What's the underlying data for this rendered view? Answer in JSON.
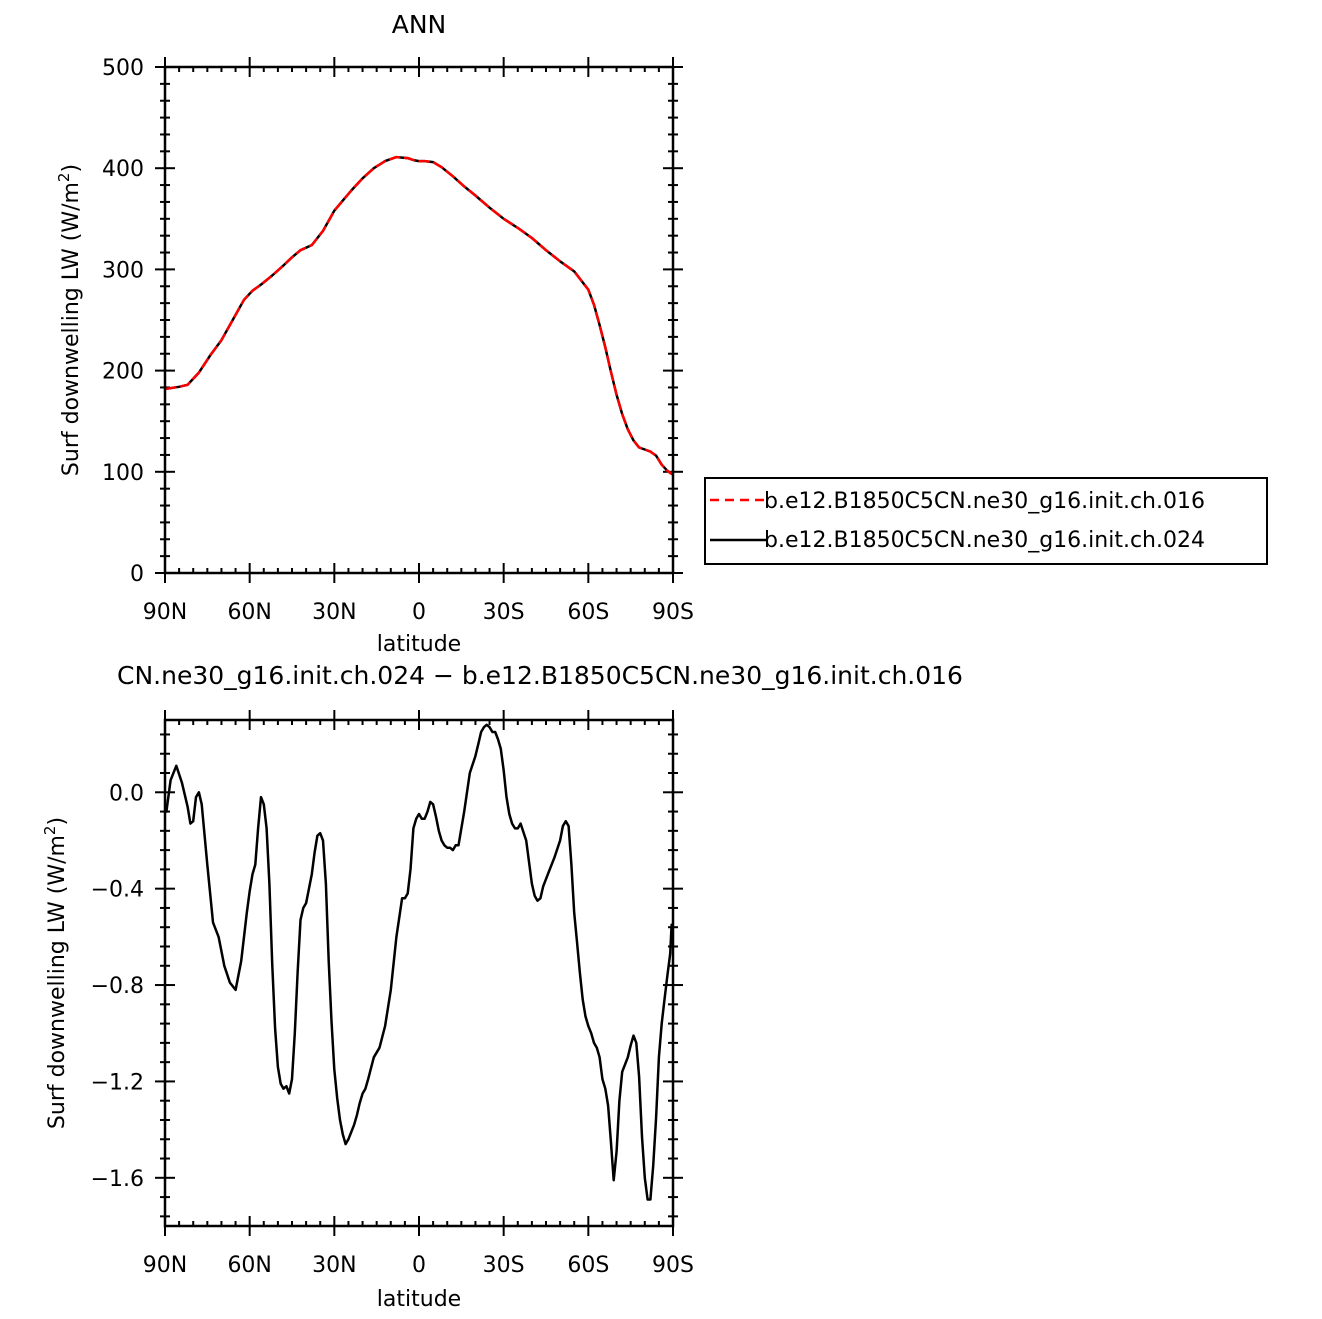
{
  "chart_data": [
    {
      "type": "line",
      "title": "ANN",
      "xlabel": "latitude",
      "ylabel": "Surf downwelling LW (W/m²)",
      "ylabel_text": "Surf downwelling LW (W/m",
      "ylabel_sup": "2",
      "ylabel_close": ")",
      "xlim": [
        -90,
        90
      ],
      "ylim": [
        0,
        500
      ],
      "xticks": [
        -90,
        -60,
        -30,
        0,
        30,
        60,
        90
      ],
      "xtick_labels": [
        "90N",
        "60N",
        "30N",
        "0",
        "30S",
        "60S",
        "90S"
      ],
      "yticks": [
        0,
        100,
        200,
        300,
        400,
        500
      ],
      "ytick_labels": [
        "0",
        "100",
        "200",
        "300",
        "400",
        "500"
      ],
      "legend_position": "right",
      "x": [
        -89.5,
        -85,
        -82,
        -78,
        -74,
        -70,
        -66,
        -62,
        -59,
        -56,
        -52,
        -48,
        -45,
        -42,
        -38,
        -34,
        -30,
        -27,
        -24,
        -20,
        -16,
        -12,
        -8,
        -4,
        -2,
        0,
        2,
        5,
        8,
        12,
        16,
        20,
        25,
        30,
        35,
        40,
        45,
        50,
        55,
        60,
        62,
        64,
        66,
        68,
        70,
        72,
        74,
        76,
        78,
        80,
        82,
        84,
        86,
        88,
        89.5
      ],
      "series": [
        {
          "name": "b.e12.B1850C5CN.ne30_g16.init.ch.016",
          "color": "#ff0000",
          "dash": true,
          "values": [
            182,
            184,
            186,
            198,
            215,
            230,
            250,
            270,
            279,
            285,
            294,
            304,
            312,
            319,
            324,
            338,
            358,
            368,
            378,
            390,
            400,
            407,
            411,
            410,
            408,
            407,
            407,
            406,
            401,
            392,
            382,
            373,
            361,
            350,
            341,
            331,
            319,
            308,
            298,
            280,
            265,
            245,
            223,
            199,
            176,
            157,
            142,
            131,
            124,
            122,
            120,
            116,
            107,
            101,
            98
          ]
        },
        {
          "name": "b.e12.B1850C5CN.ne30_g16.init.ch.024",
          "color": "#000000",
          "dash": false,
          "values": [
            182,
            184,
            186,
            198,
            215,
            230,
            250,
            270,
            279,
            285,
            294,
            304,
            312,
            319,
            324,
            338,
            358,
            368,
            378,
            390,
            400,
            407,
            411,
            410,
            408,
            407,
            407,
            406,
            401,
            392,
            382,
            373,
            361,
            350,
            341,
            331,
            319,
            308,
            298,
            280,
            265,
            245,
            223,
            199,
            176,
            157,
            142,
            131,
            124,
            122,
            120,
            116,
            107,
            101,
            98
          ]
        }
      ]
    },
    {
      "type": "line",
      "title": "CN.ne30_g16.init.ch.024 − b.e12.B1850C5CN.ne30_g16.init.ch.016",
      "xlabel": "latitude",
      "ylabel": "Surf downwelling LW (W/m²)",
      "ylabel_text": "Surf downwelling LW (W/m",
      "ylabel_sup": "2",
      "ylabel_close": ")",
      "xlim": [
        -90,
        90
      ],
      "ylim": [
        -1.8,
        0.3
      ],
      "xticks": [
        -90,
        -60,
        -30,
        0,
        30,
        60,
        90
      ],
      "xtick_labels": [
        "90N",
        "60N",
        "30N",
        "0",
        "30S",
        "60S",
        "90S"
      ],
      "yticks": [
        -1.6,
        -1.2,
        -0.8,
        -0.4,
        0.0
      ],
      "ytick_labels": [
        "−1.6",
        "−1.2",
        "−0.8",
        "−0.4",
        "0.0"
      ],
      "x": [
        -89.5,
        -88,
        -86,
        -84,
        -82,
        -81,
        -80,
        -79,
        -78,
        -77,
        -75,
        -73,
        -71,
        -69,
        -67,
        -65,
        -63,
        -61,
        -60,
        -59,
        -58,
        -57,
        -56,
        -55,
        -54,
        -53,
        -52,
        -51,
        -50,
        -49,
        -48,
        -47,
        -46,
        -45,
        -44,
        -43,
        -42,
        -41,
        -40,
        -38,
        -37,
        -36,
        -35,
        -34,
        -33,
        -32,
        -31,
        -30,
        -29,
        -28,
        -27,
        -26,
        -25,
        -23,
        -22,
        -21,
        -20,
        -19,
        -18,
        -16,
        -14,
        -12,
        -10,
        -8,
        -6,
        -5,
        -4,
        -3,
        -2,
        -1,
        0,
        1,
        2,
        3,
        4,
        5,
        6,
        7,
        8,
        9,
        10,
        11,
        12,
        13,
        14,
        16,
        18,
        20,
        21,
        22,
        23,
        24,
        25,
        26,
        27,
        28,
        29,
        30,
        31,
        32,
        33,
        34,
        35,
        36,
        38,
        40,
        41,
        42,
        43,
        44,
        46,
        48,
        50,
        51,
        52,
        53,
        54,
        55,
        56,
        57,
        58,
        59,
        60,
        61,
        62,
        63,
        64,
        65,
        66,
        67,
        68,
        69,
        70,
        71,
        72,
        73,
        74,
        75,
        76,
        77,
        78,
        79,
        80,
        81,
        82,
        83,
        84,
        85,
        86,
        87,
        88,
        89,
        89.5
      ],
      "series": [
        {
          "name": "",
          "color": "#000000",
          "dash": false,
          "values": [
            -0.08,
            0.05,
            0.11,
            0.04,
            -0.06,
            -0.13,
            -0.12,
            -0.02,
            0.0,
            -0.05,
            -0.3,
            -0.54,
            -0.6,
            -0.72,
            -0.79,
            -0.82,
            -0.7,
            -0.5,
            -0.41,
            -0.34,
            -0.3,
            -0.15,
            -0.02,
            -0.05,
            -0.15,
            -0.38,
            -0.71,
            -0.98,
            -1.14,
            -1.21,
            -1.23,
            -1.22,
            -1.25,
            -1.19,
            -1.0,
            -0.75,
            -0.53,
            -0.48,
            -0.46,
            -0.34,
            -0.25,
            -0.18,
            -0.17,
            -0.2,
            -0.38,
            -0.7,
            -0.95,
            -1.15,
            -1.27,
            -1.36,
            -1.42,
            -1.46,
            -1.44,
            -1.38,
            -1.34,
            -1.29,
            -1.25,
            -1.23,
            -1.19,
            -1.1,
            -1.06,
            -0.97,
            -0.82,
            -0.6,
            -0.44,
            -0.44,
            -0.42,
            -0.32,
            -0.15,
            -0.11,
            -0.09,
            -0.11,
            -0.11,
            -0.08,
            -0.04,
            -0.05,
            -0.1,
            -0.16,
            -0.2,
            -0.22,
            -0.23,
            -0.23,
            -0.24,
            -0.22,
            -0.22,
            -0.08,
            0.08,
            0.15,
            0.2,
            0.25,
            0.27,
            0.28,
            0.27,
            0.25,
            0.25,
            0.22,
            0.18,
            0.09,
            -0.02,
            -0.09,
            -0.13,
            -0.15,
            -0.15,
            -0.13,
            -0.2,
            -0.38,
            -0.43,
            -0.45,
            -0.44,
            -0.39,
            -0.33,
            -0.27,
            -0.2,
            -0.14,
            -0.12,
            -0.14,
            -0.3,
            -0.5,
            -0.62,
            -0.75,
            -0.86,
            -0.93,
            -0.97,
            -1.0,
            -1.04,
            -1.06,
            -1.1,
            -1.19,
            -1.23,
            -1.3,
            -1.45,
            -1.61,
            -1.49,
            -1.28,
            -1.16,
            -1.13,
            -1.1,
            -1.05,
            -1.01,
            -1.04,
            -1.18,
            -1.43,
            -1.6,
            -1.69,
            -1.69,
            -1.55,
            -1.35,
            -1.1,
            -0.96,
            -0.86,
            -0.76,
            -0.67,
            -0.55
          ]
        }
      ]
    }
  ]
}
